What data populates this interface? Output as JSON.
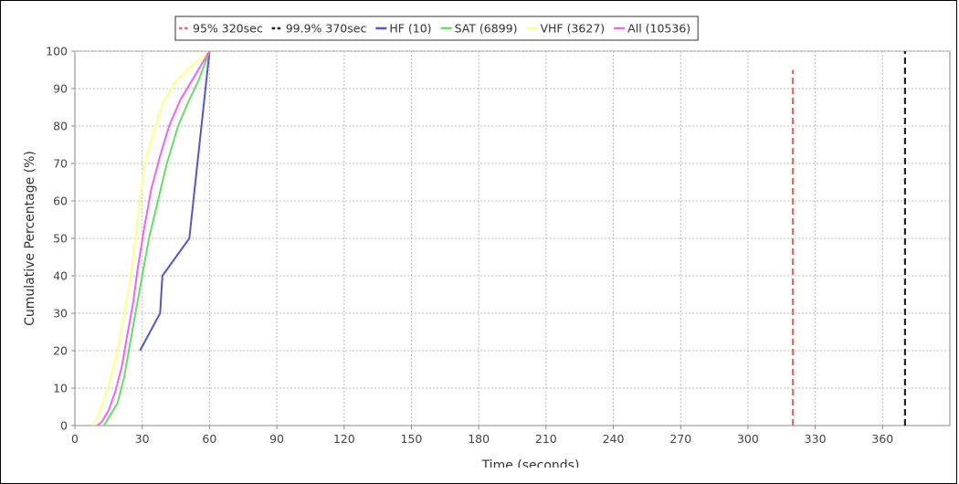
{
  "chart_data": {
    "type": "line",
    "xlabel": "Time (seconds)",
    "ylabel": "Cumulative Percentage (%)",
    "xlim": [
      0,
      390
    ],
    "ylim": [
      0,
      100
    ],
    "x_ticks": [
      0,
      30,
      60,
      90,
      120,
      150,
      180,
      210,
      240,
      270,
      300,
      330,
      360
    ],
    "y_ticks": [
      0,
      10,
      20,
      30,
      40,
      50,
      60,
      70,
      80,
      90,
      100
    ],
    "grid": true,
    "legend_position": "top-center",
    "series": [
      {
        "name": "95% 320sec",
        "color": "#ee6666",
        "style": "dashed",
        "points": [
          [
            320,
            0
          ],
          [
            320,
            95
          ]
        ]
      },
      {
        "name": "99.9% 370sec",
        "color": "#222222",
        "style": "dashed",
        "points": [
          [
            370,
            0
          ],
          [
            370,
            100
          ]
        ]
      },
      {
        "name": "HF (10)",
        "color": "#5555cc",
        "style": "solid",
        "points": [
          [
            29,
            20
          ],
          [
            38,
            30
          ],
          [
            39,
            40
          ],
          [
            51,
            50
          ],
          [
            60,
            100
          ]
        ]
      },
      {
        "name": "SAT (6899)",
        "color": "#66dd66",
        "style": "solid",
        "points": [
          [
            13,
            0
          ],
          [
            15,
            2
          ],
          [
            19,
            6
          ],
          [
            22,
            13
          ],
          [
            24,
            20
          ],
          [
            27,
            30
          ],
          [
            30,
            40
          ],
          [
            33,
            50
          ],
          [
            37,
            60
          ],
          [
            41,
            70
          ],
          [
            46,
            80
          ],
          [
            51,
            87
          ],
          [
            55,
            92
          ],
          [
            60,
            100
          ]
        ]
      },
      {
        "name": "VHF (3627)",
        "color": "#ffff88",
        "style": "solid",
        "points": [
          [
            8,
            0
          ],
          [
            10,
            2
          ],
          [
            13,
            7
          ],
          [
            16,
            13
          ],
          [
            19,
            20
          ],
          [
            22,
            30
          ],
          [
            25,
            40
          ],
          [
            27,
            50
          ],
          [
            29,
            60
          ],
          [
            31,
            70
          ],
          [
            35,
            78
          ],
          [
            39,
            86
          ],
          [
            45,
            92
          ],
          [
            52,
            96
          ],
          [
            60,
            100
          ]
        ]
      },
      {
        "name": "All (10536)",
        "color": "#ee66ee",
        "style": "solid",
        "points": [
          [
            10,
            0
          ],
          [
            12,
            1
          ],
          [
            15,
            4
          ],
          [
            18,
            9
          ],
          [
            21,
            16
          ],
          [
            23,
            23
          ],
          [
            26,
            33
          ],
          [
            28,
            42
          ],
          [
            31,
            53
          ],
          [
            34,
            63
          ],
          [
            38,
            72
          ],
          [
            42,
            80
          ],
          [
            47,
            87
          ],
          [
            53,
            93
          ],
          [
            60,
            100
          ]
        ]
      }
    ]
  }
}
